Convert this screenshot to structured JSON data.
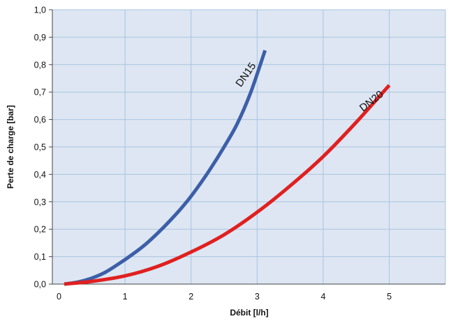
{
  "chart_data": {
    "type": "line",
    "title": "",
    "xlabel": "Débit [l/h]",
    "ylabel": "Perte de charge [bar]",
    "xlim": [
      -0.1,
      5.85
    ],
    "ylim": [
      0,
      1.0
    ],
    "x_ticks": [
      "0",
      "1",
      "2",
      "3",
      "4",
      "5"
    ],
    "y_ticks": [
      "0,0",
      "0,1",
      "0,2",
      "0,3",
      "0,4",
      "0,5",
      "0,6",
      "0,7",
      "0,8",
      "0,9",
      "1,0"
    ],
    "grid": true,
    "plot_background": "#dde6f2",
    "grid_color": "#a9c3e0",
    "series": [
      {
        "name": "DN15",
        "color": "#3d5fa8",
        "x": [
          0.08,
          0.3,
          0.5,
          0.7,
          0.9,
          1.1,
          1.3,
          1.5,
          1.7,
          1.9,
          2.1,
          2.3,
          2.5,
          2.7,
          2.9,
          3.12
        ],
        "y": [
          0.0,
          0.008,
          0.022,
          0.043,
          0.073,
          0.106,
          0.143,
          0.187,
          0.236,
          0.29,
          0.353,
          0.423,
          0.5,
          0.585,
          0.697,
          0.852
        ]
      },
      {
        "name": "DN20",
        "color": "#e02020",
        "x": [
          0.08,
          0.5,
          1.0,
          1.5,
          2.0,
          2.5,
          3.0,
          3.5,
          4.0,
          4.5,
          5.0
        ],
        "y": [
          0.0,
          0.01,
          0.03,
          0.065,
          0.117,
          0.18,
          0.262,
          0.358,
          0.465,
          0.59,
          0.725
        ]
      }
    ]
  }
}
